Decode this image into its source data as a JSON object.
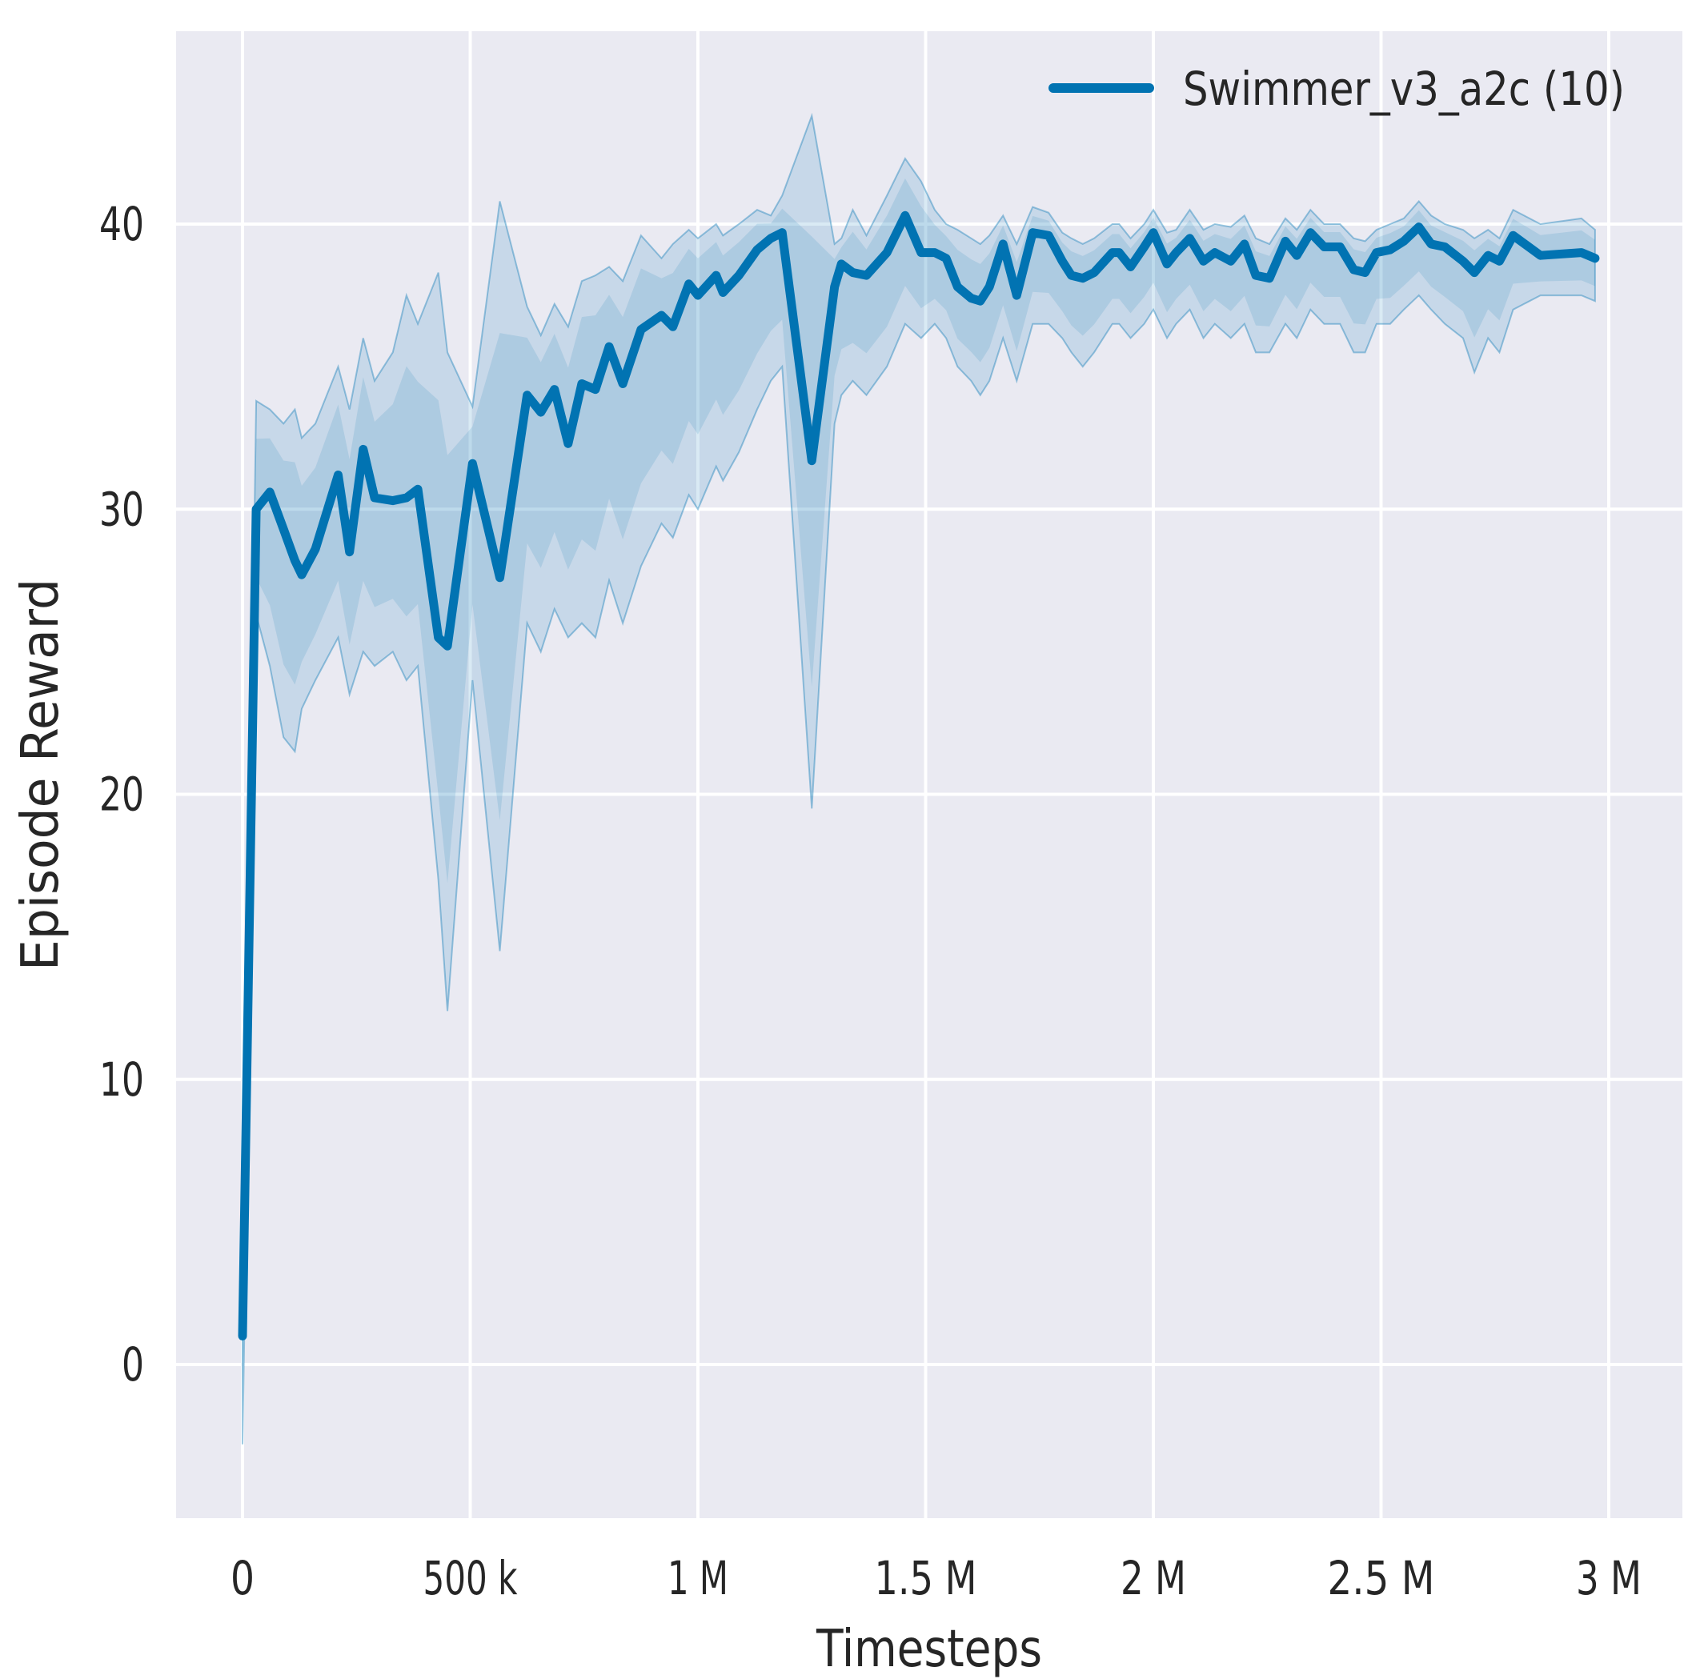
{
  "figure": {
    "background": "#ffffff",
    "axes_background": "#eaeaf2",
    "grid_color": "#ffffff",
    "text_color": "#262626",
    "accent_color": "#0173b2"
  },
  "legend": {
    "label": "Swimmer_v3_a2c (10)",
    "line_color": "#0173b2",
    "position": "upper right"
  },
  "chart_data": {
    "type": "line",
    "title": "",
    "xlabel": "Timesteps",
    "ylabel": "Episode Reward",
    "grid": true,
    "legend_position": "upper right",
    "x_tick_labels": [
      "0",
      "500 k",
      "1 M",
      "1.5 M",
      "2 M",
      "2.5 M",
      "3 M"
    ],
    "x_tick_values": [
      0,
      500000,
      1000000,
      1500000,
      2000000,
      2500000,
      3000000
    ],
    "y_tick_labels": [
      "0",
      "10",
      "20",
      "30",
      "40"
    ],
    "y_tick_values": [
      0,
      10,
      20,
      30,
      40
    ],
    "xlim": [
      -146000,
      3162000
    ],
    "ylim": [
      -5.4,
      46.8
    ],
    "series": [
      {
        "name": "Swimmer_v3_a2c (10)",
        "color": "#0173b2",
        "band_style": "shaded min-max envelope with lighter outer and darker inner region",
        "x": [
          0,
          30000,
          60000,
          90000,
          115000,
          130000,
          160000,
          210000,
          235000,
          265000,
          290000,
          330000,
          360000,
          385000,
          430000,
          450000,
          505000,
          565000,
          625000,
          655000,
          685000,
          715000,
          745000,
          775000,
          805000,
          835000,
          875000,
          920000,
          945000,
          980000,
          1000000,
          1040000,
          1055000,
          1090000,
          1130000,
          1160000,
          1185000,
          1250000,
          1300000,
          1315000,
          1340000,
          1370000,
          1415000,
          1455000,
          1490000,
          1520000,
          1545000,
          1570000,
          1600000,
          1620000,
          1640000,
          1670000,
          1700000,
          1735000,
          1770000,
          1800000,
          1820000,
          1845000,
          1870000,
          1910000,
          1925000,
          1950000,
          1980000,
          2000000,
          2030000,
          2050000,
          2080000,
          2110000,
          2135000,
          2170000,
          2200000,
          2225000,
          2255000,
          2290000,
          2315000,
          2345000,
          2375000,
          2410000,
          2440000,
          2465000,
          2490000,
          2520000,
          2550000,
          2583000,
          2610000,
          2640000,
          2680000,
          2705000,
          2735000,
          2760000,
          2790000,
          2850000,
          2940000,
          2970000
        ],
        "mean": [
          1.0,
          30.0,
          30.6,
          29.3,
          28.2,
          27.7,
          28.6,
          31.2,
          28.5,
          32.1,
          30.4,
          30.3,
          30.4,
          30.7,
          25.5,
          25.2,
          31.6,
          27.6,
          34.0,
          33.4,
          34.2,
          32.3,
          34.4,
          34.2,
          35.7,
          34.4,
          36.3,
          36.8,
          36.4,
          37.9,
          37.5,
          38.2,
          37.6,
          38.2,
          39.1,
          39.5,
          39.7,
          31.7,
          37.8,
          38.6,
          38.3,
          38.2,
          39.0,
          40.3,
          39.0,
          39.0,
          38.8,
          37.8,
          37.4,
          37.3,
          37.8,
          39.3,
          37.5,
          39.7,
          39.6,
          38.7,
          38.2,
          38.1,
          38.3,
          39.0,
          39.0,
          38.5,
          39.2,
          39.7,
          38.6,
          39.0,
          39.5,
          38.7,
          39.0,
          38.7,
          39.3,
          38.2,
          38.1,
          39.4,
          38.9,
          39.7,
          39.2,
          39.2,
          38.4,
          38.3,
          39.0,
          39.1,
          39.4,
          39.9,
          39.3,
          39.2,
          38.7,
          38.3,
          38.9,
          38.7,
          39.6,
          38.9,
          39.0,
          38.8
        ],
        "band_lower": [
          -2.8,
          26.3,
          24.5,
          22.0,
          21.5,
          23.0,
          24.0,
          25.5,
          23.5,
          25.0,
          24.5,
          25.0,
          24.0,
          24.5,
          17.0,
          12.4,
          24.0,
          14.5,
          26.0,
          25.0,
          26.5,
          25.5,
          26.0,
          25.5,
          27.5,
          26.0,
          28.0,
          29.5,
          29.0,
          30.5,
          30.0,
          31.5,
          31.0,
          32.0,
          33.5,
          34.5,
          35.0,
          19.5,
          33.0,
          34.0,
          34.5,
          34.0,
          35.0,
          36.5,
          36.0,
          36.5,
          36.0,
          35.0,
          34.5,
          34.0,
          34.5,
          36.0,
          34.5,
          36.5,
          36.5,
          36.0,
          35.5,
          35.0,
          35.5,
          36.5,
          36.5,
          36.0,
          36.5,
          37.0,
          36.0,
          36.5,
          37.0,
          36.0,
          36.5,
          36.0,
          36.5,
          35.5,
          35.5,
          36.5,
          36.0,
          37.0,
          36.5,
          36.5,
          35.5,
          35.5,
          36.5,
          36.5,
          37.0,
          37.5,
          37.0,
          36.5,
          36.0,
          34.8,
          36.0,
          35.5,
          37.0,
          37.5,
          37.5,
          37.3
        ],
        "band_upper": [
          1.5,
          33.8,
          33.5,
          33.0,
          33.5,
          32.5,
          33.0,
          35.0,
          33.5,
          36.0,
          34.5,
          35.5,
          37.5,
          36.5,
          38.3,
          35.5,
          33.6,
          40.8,
          37.1,
          36.1,
          37.2,
          36.4,
          38.0,
          38.2,
          38.5,
          38.0,
          39.6,
          38.8,
          39.3,
          39.8,
          39.5,
          40.0,
          39.6,
          40.0,
          40.5,
          40.3,
          41.0,
          43.8,
          39.3,
          39.5,
          40.5,
          39.6,
          41.0,
          42.3,
          41.5,
          40.5,
          40.0,
          39.8,
          39.5,
          39.3,
          39.6,
          40.3,
          39.3,
          40.6,
          40.4,
          39.7,
          39.5,
          39.3,
          39.5,
          40.0,
          40.0,
          39.5,
          40.0,
          40.5,
          39.7,
          39.8,
          40.5,
          39.8,
          40.0,
          39.9,
          40.3,
          39.5,
          39.3,
          40.2,
          39.8,
          40.5,
          40.0,
          40.0,
          39.5,
          39.4,
          39.8,
          40.0,
          40.2,
          40.8,
          40.3,
          40.0,
          39.8,
          39.5,
          39.8,
          39.5,
          40.5,
          40.0,
          40.2,
          39.8
        ]
      }
    ]
  }
}
